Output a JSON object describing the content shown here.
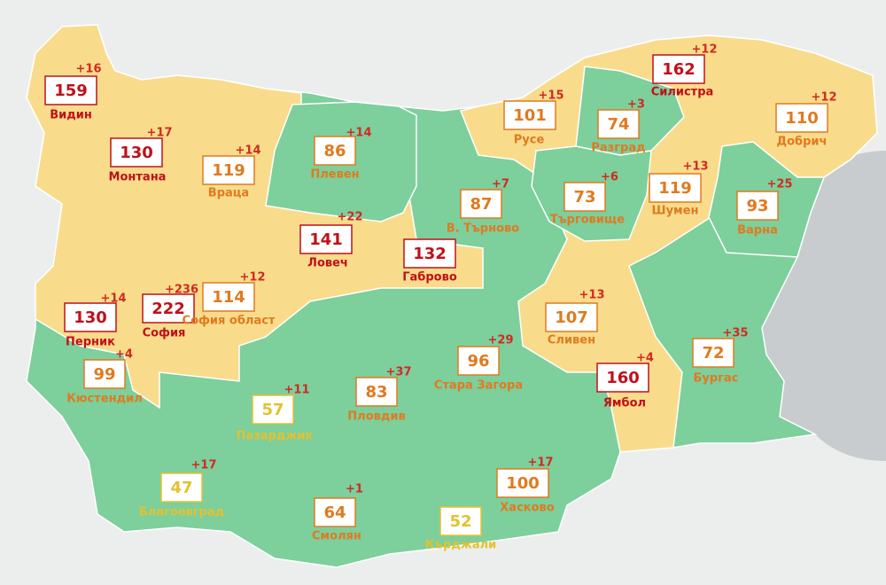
{
  "regions": [
    {
      "name": "Видин",
      "value": "159",
      "change": "+16",
      "color": "#c0101a"
    },
    {
      "name": "Монтана",
      "value": "130",
      "change": "+17",
      "color": "#c0101a"
    },
    {
      "name": "Враца",
      "value": "119",
      "change": "+14",
      "color": "#e07a1f"
    },
    {
      "name": "Плевен",
      "value": "86",
      "change": "+14",
      "color": "#e07a1f"
    },
    {
      "name": "Ловеч",
      "value": "141",
      "change": "+22",
      "color": "#c0101a"
    },
    {
      "name": "Габрово",
      "value": "132",
      "change": null,
      "color": "#c0101a"
    },
    {
      "name": "В. Търново",
      "value": "87",
      "change": "+7",
      "color": "#e07a1f"
    },
    {
      "name": "Русе",
      "value": "101",
      "change": "+15",
      "color": "#e07a1f"
    },
    {
      "name": "Разград",
      "value": "74",
      "change": "+3",
      "color": "#e07a1f"
    },
    {
      "name": "Силистра",
      "value": "162",
      "change": "+12",
      "color": "#c0101a"
    },
    {
      "name": "Добрич",
      "value": "110",
      "change": "+12",
      "color": "#e07a1f"
    },
    {
      "name": "Търговище",
      "value": "73",
      "change": "+6",
      "color": "#e07a1f"
    },
    {
      "name": "Шумен",
      "value": "119",
      "change": "+13",
      "color": "#e07a1f"
    },
    {
      "name": "Варна",
      "value": "93",
      "change": "+25",
      "color": "#e07a1f"
    },
    {
      "name": "Перник",
      "value": "130",
      "change": "+14",
      "color": "#c0101a"
    },
    {
      "name": "София",
      "value": "222",
      "change": "+236",
      "color": "#c0101a"
    },
    {
      "name": "София област",
      "value": "114",
      "change": "+12",
      "color": "#e07a1f"
    },
    {
      "name": "Кюстендил",
      "value": "99",
      "change": "+4",
      "color": "#e07a1f"
    },
    {
      "name": "Сливен",
      "value": "107",
      "change": "+13",
      "color": "#e07a1f"
    },
    {
      "name": "Стара Загора",
      "value": "96",
      "change": "+29",
      "color": "#e07a1f"
    },
    {
      "name": "Ямбол",
      "value": "160",
      "change": "+4",
      "color": "#c0101a"
    },
    {
      "name": "Бургас",
      "value": "72",
      "change": "+35",
      "color": "#e07a1f"
    },
    {
      "name": "Пазарджик",
      "value": "57",
      "change": "+11",
      "color": "#e2c231"
    },
    {
      "name": "Пловдив",
      "value": "83",
      "change": "+37",
      "color": "#e07a1f"
    },
    {
      "name": "Благоевград",
      "value": "47",
      "change": "+17",
      "color": "#e2c231"
    },
    {
      "name": "Смолян",
      "value": "64",
      "change": "+1",
      "color": "#e07a1f"
    },
    {
      "name": "Кърджали",
      "value": "52",
      "change": null,
      "color": "#e2c231"
    },
    {
      "name": "Хасково",
      "value": "100",
      "change": "+17",
      "color": "#e07a1f"
    }
  ]
}
